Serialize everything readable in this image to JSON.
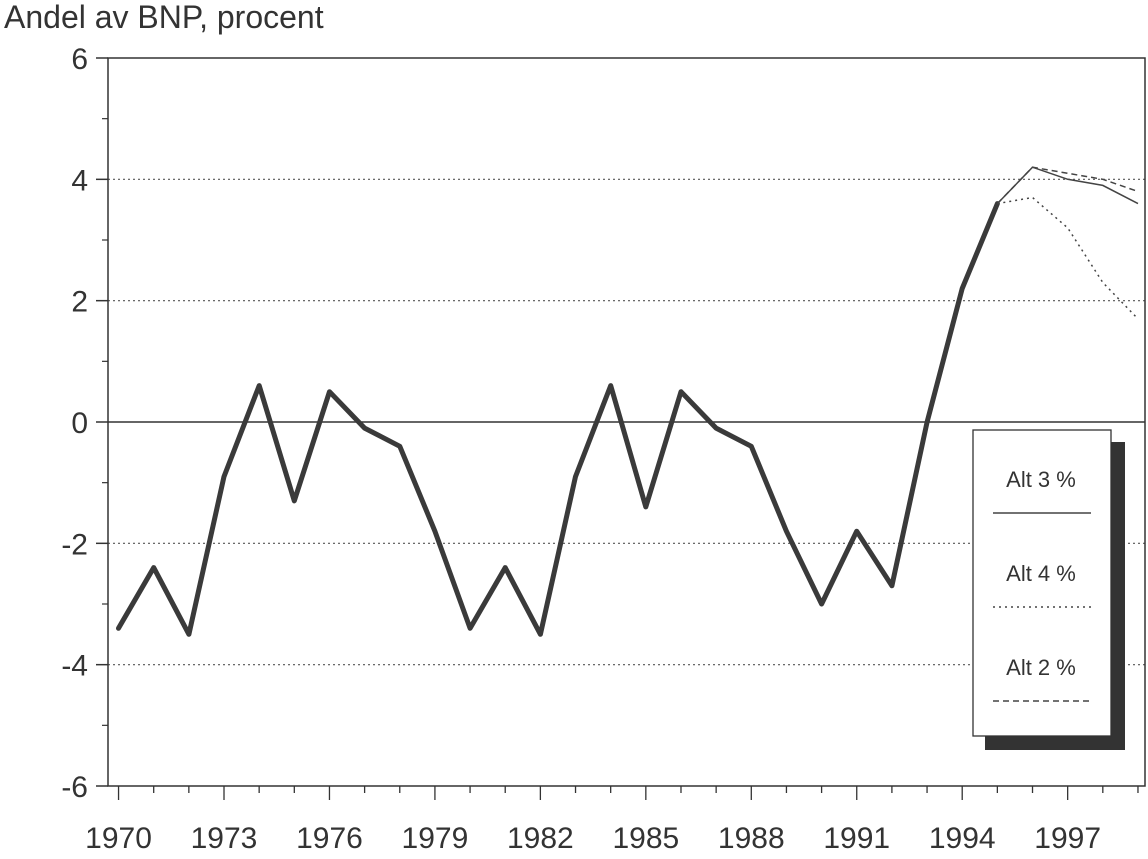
{
  "chart_data": {
    "type": "line",
    "ylabel": "Andel av BNP, procent",
    "xlabel": "",
    "ylim": [
      -6,
      6
    ],
    "xlim": [
      1969.7,
      1999.2
    ],
    "yticks": [
      6,
      4,
      2,
      0,
      -2,
      -4,
      -6
    ],
    "xticks": [
      1970,
      1973,
      1976,
      1979,
      1982,
      1985,
      1988,
      1991,
      1994,
      1997
    ],
    "grid": "dotted horizontal at 4, 2, -2, -4; solid at 0",
    "legend_position": "right",
    "historical": {
      "x": [
        1970,
        1971,
        1972,
        1973,
        1974,
        1975,
        1976,
        1977,
        1978,
        1979,
        1980,
        1981,
        1982,
        1983,
        1984,
        1985,
        1986,
        1987,
        1988,
        1989,
        1990,
        1991,
        1992,
        1993,
        1994,
        1995
      ],
      "y": [
        -3.4,
        -2.4,
        -3.5,
        -0.9,
        0.6,
        -1.3,
        0.5,
        -0.1,
        -0.4,
        -1.8,
        -3.4,
        -2.4,
        -3.5,
        -0.9,
        0.6,
        -1.4,
        0.5,
        -0.1,
        -0.4,
        -1.8,
        -3.0,
        -1.8,
        -2.7,
        0.0,
        2.2,
        3.6
      ]
    },
    "series": [
      {
        "name": "Alt 3 %",
        "x": [
          1995,
          1996,
          1997,
          1998,
          1999
        ],
        "y": [
          3.6,
          4.2,
          4.0,
          3.9,
          3.6
        ],
        "style": "solid"
      },
      {
        "name": "Alt 4 %",
        "x": [
          1995,
          1996,
          1997,
          1998,
          1999
        ],
        "y": [
          3.6,
          3.7,
          3.2,
          2.3,
          1.7
        ],
        "style": "dotted"
      },
      {
        "name": "Alt 2 %",
        "x": [
          1995,
          1996,
          1997,
          1998,
          1999
        ],
        "y": [
          3.6,
          4.2,
          4.1,
          4.0,
          3.8
        ],
        "style": "dashed"
      }
    ]
  }
}
